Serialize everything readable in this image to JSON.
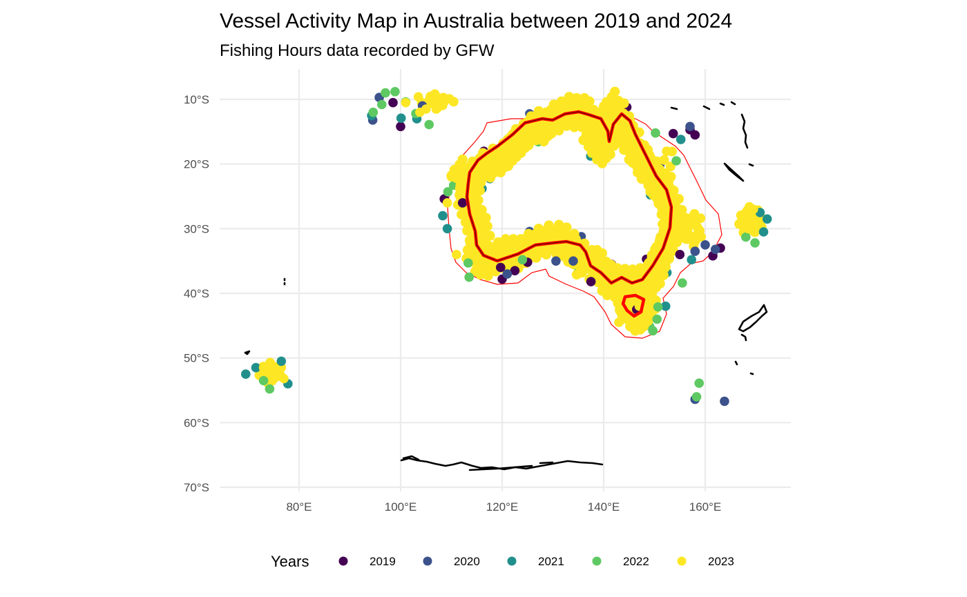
{
  "title": "Vessel Activity Map in Australia between 2019 and 2024",
  "subtitle": "Fishing Hours data recorded by GFW",
  "colors": {
    "2019": "#440154",
    "2020": "#3b528b",
    "2021": "#21908c",
    "2022": "#5ec962",
    "2023": "#fde725",
    "eez_boundary": "#ff0000",
    "land_outline": "#000000",
    "grid": "#ebebeb"
  },
  "legend": {
    "title": "Years",
    "items": [
      "2019",
      "2020",
      "2021",
      "2022",
      "2023"
    ]
  },
  "chart_data": {
    "type": "scatter",
    "title": "Vessel Activity Map in Australia between 2019 and 2024",
    "subtitle": "Fishing Hours data recorded by GFW",
    "xlabel": "",
    "ylabel": "",
    "x_ticks": [
      "80°E",
      "100°E",
      "120°E",
      "140°E",
      "160°E"
    ],
    "y_ticks": [
      "10°S",
      "20°S",
      "30°S",
      "40°S",
      "50°S",
      "60°S",
      "70°S"
    ],
    "x_range": [
      64,
      176
    ],
    "y_range": [
      -70.5,
      -6
    ],
    "legend_title": "Years",
    "legend_position": "bottom",
    "grid": true,
    "series": [
      {
        "name": "2019",
        "points": [
          [
            100,
            -14.2
          ],
          [
            98.5,
            -10.5
          ],
          [
            108.6,
            -25.4
          ],
          [
            112.2,
            -26
          ],
          [
            120,
            -37.8
          ],
          [
            122.5,
            -36.5
          ],
          [
            119.7,
            -36
          ],
          [
            125,
            -35.2
          ],
          [
            137.5,
            -38.2
          ],
          [
            146.5,
            -42.5
          ],
          [
            153.7,
            -15.3
          ],
          [
            157,
            -14.7
          ],
          [
            158,
            -15.5
          ],
          [
            163,
            -33
          ],
          [
            161.5,
            -34.2
          ],
          [
            155,
            -34
          ]
        ]
      },
      {
        "name": "2020",
        "points": [
          [
            94.5,
            -13.2
          ],
          [
            95.8,
            -9.7
          ],
          [
            104.3,
            -11
          ],
          [
            158,
            -56.4
          ],
          [
            163.8,
            -56.7
          ],
          [
            157,
            -14.2
          ],
          [
            160,
            -32.5
          ],
          [
            162,
            -33.2
          ],
          [
            130.6,
            -35
          ],
          [
            134,
            -35
          ],
          [
            121,
            -37
          ],
          [
            158,
            -33.5
          ]
        ]
      },
      {
        "name": "2021",
        "points": [
          [
            94.3,
            -12.5
          ],
          [
            100.1,
            -12.9
          ],
          [
            103.2,
            -13
          ],
          [
            108.3,
            -28
          ],
          [
            109.2,
            -30
          ],
          [
            69.5,
            -52.5
          ],
          [
            71.5,
            -51.5
          ],
          [
            77.8,
            -54
          ],
          [
            76.5,
            -50.5
          ],
          [
            155.2,
            -16.2
          ],
          [
            171.5,
            -30.5
          ],
          [
            170.8,
            -27.5
          ],
          [
            172.2,
            -28.5
          ],
          [
            152.2,
            -42
          ],
          [
            157.3,
            -34.8
          ]
        ]
      },
      {
        "name": "2022",
        "points": [
          [
            94.6,
            -12
          ],
          [
            96.3,
            -10.8
          ],
          [
            97,
            -9
          ],
          [
            98.9,
            -8.8
          ],
          [
            101,
            -10.4
          ],
          [
            103,
            -12.2
          ],
          [
            105.6,
            -13.9
          ],
          [
            109.3,
            -24.3
          ],
          [
            113.3,
            -35.3
          ],
          [
            113.5,
            -37.5
          ],
          [
            124,
            -34.8
          ],
          [
            150.2,
            -15.2
          ],
          [
            154.3,
            -19.5
          ],
          [
            158.3,
            -56
          ],
          [
            158.8,
            -53.9
          ],
          [
            74.2,
            -54.8
          ],
          [
            73,
            -53.5
          ],
          [
            168,
            -31.3
          ],
          [
            169.8,
            -32.2
          ],
          [
            150.5,
            -44
          ],
          [
            149.7,
            -45.8
          ],
          [
            150.7,
            -42.1
          ],
          [
            155.5,
            -38.4
          ]
        ]
      },
      {
        "name": "2023",
        "points": [
          [
            105,
            -11.5
          ],
          [
            103.5,
            -9.6
          ],
          [
            101,
            -10.5
          ],
          [
            103.8,
            -12
          ],
          [
            107,
            -11.5
          ],
          [
            75,
            -52
          ],
          [
            73,
            -51.5
          ],
          [
            77,
            -53.2
          ],
          [
            168,
            -27.5
          ],
          [
            169.5,
            -27
          ],
          [
            168.5,
            -30
          ],
          [
            167,
            -29
          ],
          [
            135,
            -14
          ],
          [
            128,
            -13.5
          ],
          [
            140,
            -11
          ],
          [
            110,
            -22
          ],
          [
            109.2,
            -26
          ],
          [
            111,
            -34
          ],
          [
            118,
            -34.5
          ],
          [
            130,
            -32.5
          ],
          [
            140,
            -37.5
          ],
          [
            147,
            -42
          ],
          [
            150,
            -36
          ],
          [
            153,
            -28
          ],
          [
            151,
            -22
          ],
          [
            146,
            -17
          ],
          [
            155,
            -30
          ],
          [
            143,
            -44.5
          ],
          [
            145.5,
            -44
          ],
          [
            148,
            -44.5
          ]
        ]
      }
    ]
  }
}
